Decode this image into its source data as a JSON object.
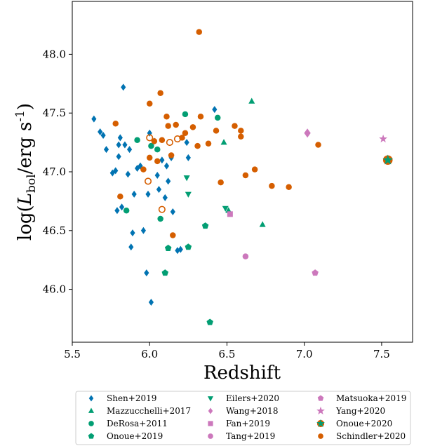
{
  "chart_data": {
    "type": "scatter",
    "xlabel": "Redshift",
    "ylabel": "log(L_bol/erg s^-1)",
    "xlim": [
      5.5,
      7.7
    ],
    "ylim": [
      45.55,
      48.45
    ],
    "xticks": [
      5.5,
      6.0,
      6.5,
      7.0,
      7.5
    ],
    "xtick_labels": [
      "5.5",
      "6.0",
      "6.5",
      "7.0",
      "7.5"
    ],
    "yticks": [
      46.0,
      46.5,
      47.0,
      47.5,
      48.0
    ],
    "ytick_labels": [
      "46.0",
      "46.5",
      "47.0",
      "47.5",
      "48.0"
    ],
    "grid": false,
    "legend_position": "below",
    "series": [
      {
        "name": "Shen+2019",
        "marker": "diamond",
        "color": "#0173b2",
        "filled": true,
        "points": [
          [
            5.64,
            47.45
          ],
          [
            5.68,
            47.34
          ],
          [
            5.7,
            47.31
          ],
          [
            5.72,
            47.19
          ],
          [
            5.76,
            46.99
          ],
          [
            5.78,
            47.01
          ],
          [
            5.79,
            46.67
          ],
          [
            5.8,
            47.13
          ],
          [
            5.8,
            47.23
          ],
          [
            5.81,
            47.29
          ],
          [
            5.82,
            46.7
          ],
          [
            5.83,
            47.72
          ],
          [
            5.84,
            47.23
          ],
          [
            5.86,
            46.98
          ],
          [
            5.87,
            47.19
          ],
          [
            5.88,
            46.36
          ],
          [
            5.89,
            46.48
          ],
          [
            5.9,
            46.81
          ],
          [
            5.92,
            47.03
          ],
          [
            5.94,
            47.05
          ],
          [
            5.96,
            46.5
          ],
          [
            5.98,
            46.14
          ],
          [
            5.99,
            46.81
          ],
          [
            6.0,
            47.33
          ],
          [
            6.01,
            45.89
          ],
          [
            6.03,
            47.26
          ],
          [
            6.05,
            46.97
          ],
          [
            6.06,
            46.85
          ],
          [
            6.08,
            47.1
          ],
          [
            6.1,
            46.78
          ],
          [
            6.11,
            47.05
          ],
          [
            6.12,
            46.92
          ],
          [
            6.14,
            47.12
          ],
          [
            6.15,
            46.66
          ],
          [
            6.18,
            46.33
          ],
          [
            6.2,
            46.34
          ],
          [
            6.24,
            47.25
          ],
          [
            6.25,
            47.12
          ],
          [
            6.42,
            47.53
          ]
        ]
      },
      {
        "name": "Mazzucchelli+2017",
        "marker": "triangle-up",
        "color": "#029e73",
        "filled": true,
        "points": [
          [
            6.48,
            47.25
          ],
          [
            6.51,
            46.67
          ],
          [
            6.66,
            47.6
          ],
          [
            6.73,
            46.55
          ]
        ]
      },
      {
        "name": "DeRosa+2011",
        "marker": "circle",
        "color": "#029e73",
        "filled": true,
        "points": [
          [
            5.85,
            46.67
          ],
          [
            5.92,
            47.27
          ],
          [
            6.01,
            47.22
          ],
          [
            6.05,
            47.19
          ],
          [
            6.07,
            46.6
          ],
          [
            6.23,
            47.49
          ],
          [
            6.44,
            47.46
          ]
        ]
      },
      {
        "name": "Onoue+2019",
        "marker": "pentagon",
        "color": "#029e73",
        "filled": true,
        "points": [
          [
            6.1,
            46.14
          ],
          [
            6.12,
            46.35
          ],
          [
            6.25,
            46.36
          ],
          [
            6.36,
            46.54
          ],
          [
            6.39,
            45.72
          ]
        ]
      },
      {
        "name": "Eilers+2020",
        "marker": "triangle-down",
        "color": "#029e73",
        "filled": true,
        "points": [
          [
            6.24,
            46.95
          ],
          [
            6.25,
            46.81
          ],
          [
            6.49,
            46.69
          ]
        ]
      },
      {
        "name": "Wang+2018",
        "marker": "diamond",
        "color": "#cc78bc",
        "filled": true,
        "points": [
          [
            7.02,
            47.33
          ]
        ]
      },
      {
        "name": "Fan+2019",
        "marker": "square",
        "color": "#cc78bc",
        "filled": true,
        "points": [
          [
            6.52,
            46.64
          ]
        ]
      },
      {
        "name": "Tang+2019",
        "marker": "circle",
        "color": "#cc78bc",
        "filled": true,
        "points": [
          [
            6.62,
            46.28
          ]
        ]
      },
      {
        "name": "Matsuoka+2019",
        "marker": "pentagon",
        "color": "#cc78bc",
        "filled": true,
        "points": [
          [
            7.07,
            46.14
          ]
        ]
      },
      {
        "name": "Yang+2020",
        "marker": "star",
        "color": "#cc78bc",
        "filled": true,
        "points": [
          [
            7.51,
            47.28
          ]
        ]
      },
      {
        "name": "Onoue+2020",
        "marker": "star",
        "color": "#029e73",
        "filled": true,
        "points": [
          [
            7.54,
            47.1
          ]
        ]
      },
      {
        "name": "Schindler+2020",
        "marker": "circle",
        "color": "#d55e00",
        "filled": true,
        "points": [
          [
            5.78,
            47.41
          ],
          [
            5.81,
            46.79
          ],
          [
            5.96,
            47.02
          ],
          [
            6.0,
            47.12
          ],
          [
            6.0,
            47.58
          ],
          [
            6.03,
            47.26
          ],
          [
            6.05,
            47.09
          ],
          [
            6.07,
            47.67
          ],
          [
            6.08,
            47.27
          ],
          [
            6.11,
            47.47
          ],
          [
            6.12,
            47.39
          ],
          [
            6.14,
            47.14
          ],
          [
            6.15,
            46.46
          ],
          [
            6.17,
            47.4
          ],
          [
            6.21,
            47.29
          ],
          [
            6.23,
            47.33
          ],
          [
            6.28,
            47.38
          ],
          [
            6.31,
            47.22
          ],
          [
            6.32,
            48.19
          ],
          [
            6.33,
            47.47
          ],
          [
            6.38,
            47.24
          ],
          [
            6.43,
            47.35
          ],
          [
            6.46,
            46.91
          ],
          [
            6.55,
            47.39
          ],
          [
            6.59,
            47.3
          ],
          [
            6.59,
            47.35
          ],
          [
            6.62,
            46.97
          ],
          [
            6.68,
            47.02
          ],
          [
            6.79,
            46.88
          ],
          [
            6.9,
            46.87
          ],
          [
            7.09,
            47.23
          ],
          [
            7.54,
            47.1
          ]
        ]
      },
      {
        "name": "Schindler+2020 (open)",
        "marker": "circle",
        "color": "#d55e00",
        "filled": false,
        "points": [
          [
            5.99,
            46.92
          ],
          [
            6.0,
            47.29
          ],
          [
            6.08,
            46.68
          ],
          [
            6.13,
            47.25
          ],
          [
            6.18,
            47.28
          ]
        ]
      }
    ]
  },
  "legend": {
    "items": [
      {
        "label": "Shen+2019",
        "marker": "diamond",
        "color": "#0173b2"
      },
      {
        "label": "Mazzucchelli+2017",
        "marker": "triangle-up",
        "color": "#029e73"
      },
      {
        "label": "DeRosa+2011",
        "marker": "circle",
        "color": "#029e73"
      },
      {
        "label": "Onoue+2019",
        "marker": "pentagon",
        "color": "#029e73"
      },
      {
        "label": "Eilers+2020",
        "marker": "triangle-down",
        "color": "#029e73"
      },
      {
        "label": "Wang+2018",
        "marker": "diamond",
        "color": "#cc78bc"
      },
      {
        "label": "Fan+2019",
        "marker": "square",
        "color": "#cc78bc"
      },
      {
        "label": "Tang+2019",
        "marker": "circle",
        "color": "#cc78bc"
      },
      {
        "label": "Matsuoka+2019",
        "marker": "pentagon",
        "color": "#cc78bc"
      },
      {
        "label": "Yang+2020",
        "marker": "star",
        "color": "#cc78bc"
      },
      {
        "label": "Onoue+2020",
        "marker": "star",
        "color": "#029e73"
      },
      {
        "label": "Schindler+2020",
        "marker": "circle",
        "color": "#d55e00"
      }
    ]
  }
}
